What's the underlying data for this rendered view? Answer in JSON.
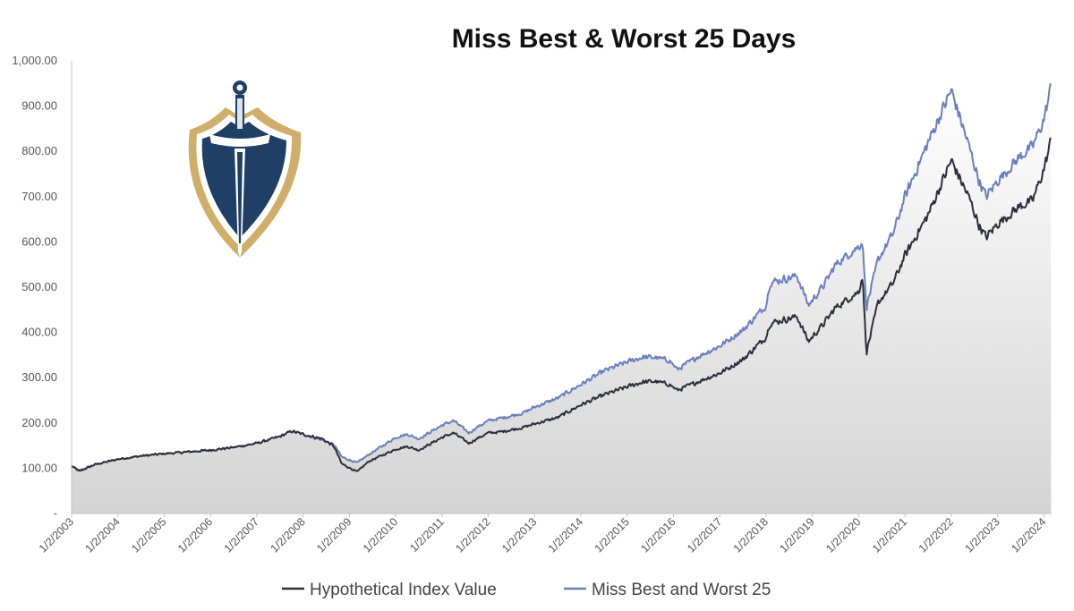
{
  "chart_data": {
    "type": "area",
    "title": "Miss Best & Worst 25 Days",
    "xlabel": "",
    "ylabel": "",
    "ylim": [
      0,
      1000
    ],
    "y_ticks": [
      {
        "value": 0,
        "label": "-"
      },
      {
        "value": 100,
        "label": "100.00"
      },
      {
        "value": 200,
        "label": "200.00"
      },
      {
        "value": 300,
        "label": "300.00"
      },
      {
        "value": 400,
        "label": "400.00"
      },
      {
        "value": 500,
        "label": "500.00"
      },
      {
        "value": 600,
        "label": "600.00"
      },
      {
        "value": 700,
        "label": "700.00"
      },
      {
        "value": 800,
        "label": "800.00"
      },
      {
        "value": 900,
        "label": "900.00"
      },
      {
        "value": 1000,
        "label": "1,000.00"
      }
    ],
    "x_ticks": [
      "1/2/2003",
      "1/2/2004",
      "1/2/2005",
      "1/2/2006",
      "1/2/2007",
      "1/2/2008",
      "1/2/2009",
      "1/2/2010",
      "1/2/2011",
      "1/2/2012",
      "1/2/2013",
      "1/2/2014",
      "1/2/2015",
      "1/2/2016",
      "1/2/2017",
      "1/2/2018",
      "1/2/2019",
      "1/2/2020",
      "1/2/2021",
      "1/2/2022",
      "1/2/2023",
      "1/2/2024"
    ],
    "grid": false,
    "legend_position": "bottom",
    "colors": {
      "hypothetical": "#2e2e3e",
      "miss": "#6a7fbd",
      "area_top": "#ffffff",
      "area_bottom": "#d6d6d6",
      "axis": "#bfbfbf"
    },
    "x": [
      "2003-01",
      "2003-03",
      "2003-07",
      "2004-01",
      "2004-07",
      "2005-01",
      "2005-07",
      "2006-01",
      "2006-07",
      "2007-01",
      "2007-07",
      "2007-10",
      "2008-01",
      "2008-06",
      "2008-09",
      "2008-11",
      "2009-03",
      "2009-06",
      "2010-01",
      "2010-04",
      "2010-07",
      "2011-01",
      "2011-04",
      "2011-08",
      "2011-10",
      "2012-01",
      "2012-04",
      "2012-10",
      "2013-01",
      "2013-07",
      "2014-01",
      "2014-07",
      "2015-01",
      "2015-05",
      "2015-08",
      "2015-12",
      "2016-02",
      "2016-07",
      "2017-01",
      "2017-07",
      "2018-01",
      "2018-02",
      "2018-09",
      "2018-12",
      "2019-04",
      "2019-07",
      "2020-01",
      "2020-02",
      "2020-03",
      "2020-06",
      "2020-10",
      "2021-01",
      "2021-07",
      "2022-01",
      "2022-06",
      "2022-08",
      "2022-10",
      "2023-01",
      "2023-07",
      "2023-10",
      "2024-01",
      "2024-03"
    ],
    "series": [
      {
        "name": "Hypothetical Index Value",
        "values": [
          105,
          93,
          108,
          120,
          127,
          132,
          136,
          140,
          146,
          155,
          170,
          182,
          175,
          165,
          148,
          110,
          92,
          115,
          142,
          148,
          140,
          168,
          178,
          155,
          165,
          178,
          180,
          190,
          198,
          212,
          240,
          262,
          280,
          290,
          292,
          285,
          272,
          290,
          310,
          340,
          390,
          420,
          435,
          380,
          420,
          455,
          490,
          525,
          355,
          465,
          510,
          570,
          660,
          780,
          690,
          640,
          610,
          640,
          680,
          690,
          760,
          830
        ]
      },
      {
        "name": "Miss Best and Worst 25",
        "values": [
          105,
          95,
          108,
          120,
          127,
          132,
          136,
          140,
          146,
          155,
          170,
          182,
          175,
          162,
          152,
          125,
          112,
          130,
          168,
          175,
          165,
          195,
          205,
          178,
          190,
          205,
          210,
          222,
          235,
          255,
          285,
          315,
          335,
          345,
          345,
          338,
          318,
          345,
          370,
          405,
          460,
          510,
          525,
          460,
          505,
          550,
          590,
          600,
          455,
          560,
          620,
          700,
          820,
          935,
          800,
          740,
          700,
          735,
          790,
          810,
          870,
          950
        ]
      }
    ]
  },
  "legend": [
    {
      "label": "Hypothetical Index Value",
      "color": "#2e2e3e"
    },
    {
      "label": "Miss Best and Worst 25",
      "color": "#6a7fbd"
    }
  ]
}
